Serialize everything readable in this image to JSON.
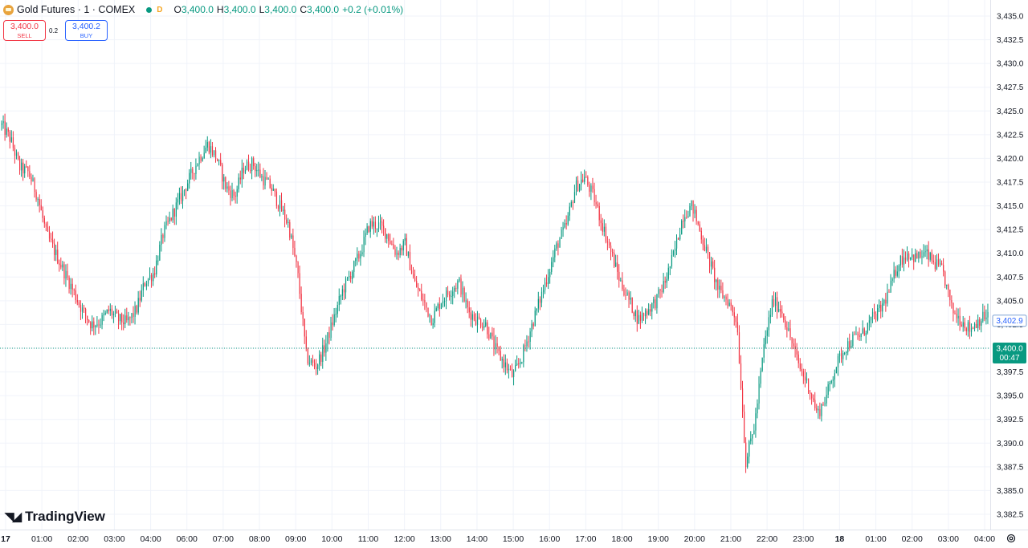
{
  "header": {
    "symbol": "Gold Futures · 1 · COMEX",
    "interval_badge": "D",
    "open_label": "O",
    "open": "3,400.0",
    "high_label": "H",
    "high": "3,400.0",
    "low_label": "L",
    "low": "3,400.0",
    "close_label": "C",
    "close": "3,400.0",
    "change": "+0.2 (+0.01%)"
  },
  "trade": {
    "sell_price": "3,400.0",
    "sell_label": "SELL",
    "spread": "0.2",
    "buy_price": "3,400.2",
    "buy_label": "BUY"
  },
  "brand": {
    "name": "TradingView"
  },
  "colors": {
    "up": "#089981",
    "down": "#f23645",
    "grid": "#f0f3fa",
    "axis_text": "#131722",
    "last_price": "#089981",
    "cursor_label": "#dbe6f5"
  },
  "chart_data": {
    "type": "candlestick",
    "ylim": [
      3381.0,
      3436.5
    ],
    "y_ticks": [
      "3,382.5",
      "3,385.0",
      "3,387.5",
      "3,390.0",
      "3,392.5",
      "3,395.0",
      "3,397.5",
      "3,400.0",
      "3,402.5",
      "3,405.0",
      "3,407.5",
      "3,410.0",
      "3,412.5",
      "3,415.0",
      "3,417.5",
      "3,420.0",
      "3,422.5",
      "3,425.0",
      "3,427.5",
      "3,430.0",
      "3,432.5",
      "3,435.0"
    ],
    "x_labels": [
      "17",
      "01:00",
      "02:00",
      "03:00",
      "04:00",
      "06:00",
      "07:00",
      "08:00",
      "09:00",
      "10:00",
      "11:00",
      "12:00",
      "13:00",
      "14:00",
      "15:00",
      "16:00",
      "17:00",
      "18:00",
      "19:00",
      "20:00",
      "21:00",
      "22:00",
      "23:00",
      "18",
      "01:00",
      "02:00",
      "03:00",
      "04:00"
    ],
    "price_path": [
      3423.5,
      3422,
      3419,
      3418.5,
      3416,
      3412,
      3410,
      3408,
      3406,
      3404,
      3402.5,
      3402.8,
      3404,
      3403,
      3402.7,
      3404,
      3407,
      3408,
      3412,
      3414,
      3416,
      3418,
      3420,
      3421.5,
      3420,
      3417,
      3416,
      3419,
      3419.5,
      3418,
      3417,
      3415,
      3413,
      3408,
      3399,
      3398,
      3400,
      3403,
      3406,
      3408,
      3410,
      3413,
      3413,
      3412,
      3410,
      3411,
      3407,
      3405,
      3403,
      3405,
      3406,
      3407,
      3404,
      3403,
      3402.5,
      3400,
      3398.5,
      3397,
      3399,
      3402,
      3405,
      3408,
      3411,
      3413,
      3417,
      3418,
      3416,
      3413,
      3410,
      3407,
      3405,
      3403,
      3404,
      3405,
      3407,
      3410,
      3414,
      3415,
      3412,
      3409,
      3406,
      3405,
      3403,
      3388,
      3392,
      3400,
      3405,
      3404,
      3401,
      3398,
      3396,
      3393,
      3395,
      3398,
      3400,
      3401,
      3401.5,
      3403,
      3404,
      3406,
      3409,
      3410,
      3409.5,
      3410,
      3409,
      3408,
      3404,
      3403,
      3402,
      3403,
      3403.5
    ],
    "last_price": 3400.0,
    "last_price_label": "3,400.0",
    "countdown": "00:47",
    "cursor_price_label": "3,402.9"
  }
}
